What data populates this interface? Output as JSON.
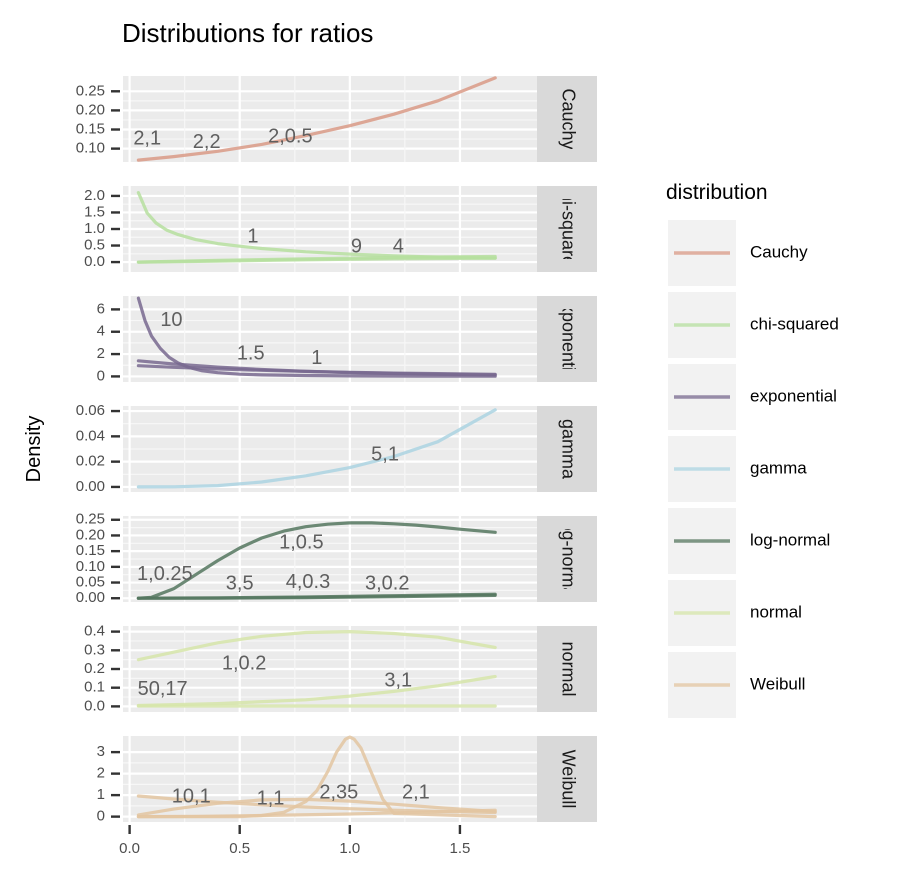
{
  "chart_data": {
    "type": "line",
    "title": "Distributions for ratios",
    "xlabel": "",
    "ylabel": "Density",
    "xlim": [
      -0.03,
      1.85
    ],
    "x_ticks": [
      {
        "value": 0.0,
        "label": "0.0"
      },
      {
        "value": 0.5,
        "label": "0.5"
      },
      {
        "value": 1.0,
        "label": "1.0"
      },
      {
        "value": 1.5,
        "label": "1.5"
      }
    ],
    "legend": {
      "title": "distribution",
      "position": "right",
      "entries": [
        {
          "label": "Cauchy",
          "color": "#d99a86"
        },
        {
          "label": "chi-squared",
          "color": "#b6df9f"
        },
        {
          "label": "exponential",
          "color": "#78698f"
        },
        {
          "label": "gamma",
          "color": "#acd4e2"
        },
        {
          "label": "log-normal",
          "color": "#55775f"
        },
        {
          "label": "normal",
          "color": "#d6e5a9"
        },
        {
          "label": "Weibull",
          "color": "#e3c5a1"
        }
      ]
    },
    "panels": [
      {
        "strip": "Cauchy",
        "color": "#d99a86",
        "ylim": [
          0.065,
          0.29
        ],
        "y_ticks": [
          {
            "value": 0.1,
            "label": "0.10"
          },
          {
            "value": 0.15,
            "label": "0.15"
          },
          {
            "value": 0.2,
            "label": "0.20"
          },
          {
            "value": 0.25,
            "label": "0.25"
          }
        ],
        "curves": [
          {
            "params": "2,0.5",
            "x": [
              0.04,
              0.2,
              0.4,
              0.6,
              0.8,
              1.0,
              1.2,
              1.4,
              1.66
            ],
            "y": [
              0.07,
              0.079,
              0.093,
              0.111,
              0.134,
              0.16,
              0.19,
              0.225,
              0.285
            ]
          }
        ],
        "labels": [
          {
            "text": "2,1",
            "x": 0.08,
            "y": 0.125
          },
          {
            "text": "2,2",
            "x": 0.35,
            "y": 0.115
          },
          {
            "text": "2,0.5",
            "x": 0.73,
            "y": 0.13
          }
        ]
      },
      {
        "strip": "chi-squared",
        "color": "#b6df9f",
        "ylim": [
          -0.3,
          2.3
        ],
        "y_ticks": [
          {
            "value": 0.0,
            "label": "0.0"
          },
          {
            "value": 0.5,
            "label": "0.5"
          },
          {
            "value": 1.0,
            "label": "1.0"
          },
          {
            "value": 1.5,
            "label": "1.5"
          },
          {
            "value": 2.0,
            "label": "2.0"
          }
        ],
        "curves": [
          {
            "params": "1",
            "x": [
              0.04,
              0.08,
              0.12,
              0.17,
              0.22,
              0.3,
              0.4,
              0.5,
              0.6,
              0.8,
              1.0,
              1.2,
              1.4,
              1.66
            ],
            "y": [
              2.1,
              1.48,
              1.18,
              0.96,
              0.83,
              0.68,
              0.56,
              0.48,
              0.41,
              0.31,
              0.24,
              0.19,
              0.15,
              0.12
            ]
          },
          {
            "params": "9",
            "x": [
              0.04,
              0.4,
              0.8,
              1.2,
              1.66
            ],
            "y": [
              0.0,
              0.03,
              0.07,
              0.1,
              0.12
            ]
          },
          {
            "params": "4",
            "x": [
              0.04,
              0.4,
              0.8,
              1.2,
              1.66
            ],
            "y": [
              0.0,
              0.05,
              0.1,
              0.14,
              0.17
            ]
          }
        ],
        "labels": [
          {
            "text": "1",
            "x": 0.56,
            "y": 0.75
          },
          {
            "text": "9",
            "x": 1.03,
            "y": 0.45
          },
          {
            "text": "4",
            "x": 1.22,
            "y": 0.45
          }
        ]
      },
      {
        "strip": "exponential",
        "color": "#78698f",
        "ylim": [
          -0.5,
          7.2
        ],
        "y_ticks": [
          {
            "value": 0,
            "label": "0"
          },
          {
            "value": 2,
            "label": "2"
          },
          {
            "value": 4,
            "label": "4"
          },
          {
            "value": 6,
            "label": "6"
          }
        ],
        "curves": [
          {
            "params": "10",
            "x": [
              0.04,
              0.07,
              0.1,
              0.14,
              0.18,
              0.22,
              0.27,
              0.33,
              0.4,
              0.5,
              0.6,
              0.8,
              1.0,
              1.3,
              1.66
            ],
            "y": [
              7.0,
              5.0,
              3.6,
              2.5,
              1.7,
              1.2,
              0.8,
              0.5,
              0.33,
              0.2,
              0.14,
              0.08,
              0.05,
              0.03,
              0.02
            ]
          },
          {
            "params": "1.5",
            "x": [
              0.04,
              0.2,
              0.4,
              0.6,
              0.8,
              1.0,
              1.2,
              1.4,
              1.66
            ],
            "y": [
              1.4,
              1.11,
              0.83,
              0.62,
              0.46,
              0.34,
              0.26,
              0.19,
              0.13
            ]
          },
          {
            "params": "1",
            "x": [
              0.04,
              0.2,
              0.4,
              0.6,
              0.8,
              1.0,
              1.2,
              1.4,
              1.66
            ],
            "y": [
              0.96,
              0.82,
              0.67,
              0.55,
              0.45,
              0.37,
              0.3,
              0.25,
              0.19
            ]
          }
        ],
        "labels": [
          {
            "text": "10",
            "x": 0.19,
            "y": 5.0
          },
          {
            "text": "1.5",
            "x": 0.55,
            "y": 2.0
          },
          {
            "text": "1",
            "x": 0.85,
            "y": 1.6
          }
        ]
      },
      {
        "strip": "gamma",
        "color": "#acd4e2",
        "ylim": [
          -0.004,
          0.064
        ],
        "y_ticks": [
          {
            "value": 0.0,
            "label": "0.00"
          },
          {
            "value": 0.02,
            "label": "0.02"
          },
          {
            "value": 0.04,
            "label": "0.04"
          },
          {
            "value": 0.06,
            "label": "0.06"
          }
        ],
        "curves": [
          {
            "params": "5,1",
            "x": [
              0.04,
              0.2,
              0.4,
              0.6,
              0.8,
              1.0,
              1.2,
              1.4,
              1.66
            ],
            "y": [
              0.0,
              0.0001,
              0.0011,
              0.0039,
              0.0088,
              0.0153,
              0.0241,
              0.0358,
              0.061
            ]
          }
        ],
        "labels": [
          {
            "text": "5,1",
            "x": 1.16,
            "y": 0.025
          }
        ]
      },
      {
        "strip": "log-normal",
        "color": "#55775f",
        "ylim": [
          -0.012,
          0.262
        ],
        "y_ticks": [
          {
            "value": 0.0,
            "label": "0.00"
          },
          {
            "value": 0.05,
            "label": "0.05"
          },
          {
            "value": 0.1,
            "label": "0.10"
          },
          {
            "value": 0.15,
            "label": "0.15"
          },
          {
            "value": 0.2,
            "label": "0.20"
          },
          {
            "value": 0.25,
            "label": "0.25"
          }
        ],
        "curves": [
          {
            "params": "1,0.5",
            "x": [
              0.04,
              0.1,
              0.2,
              0.3,
              0.4,
              0.5,
              0.6,
              0.7,
              0.8,
              0.9,
              1.0,
              1.1,
              1.2,
              1.3,
              1.4,
              1.5,
              1.66
            ],
            "y": [
              0.0,
              0.003,
              0.03,
              0.075,
              0.12,
              0.16,
              0.192,
              0.214,
              0.228,
              0.236,
              0.24,
              0.24,
              0.237,
              0.233,
              0.227,
              0.22,
              0.21
            ]
          },
          {
            "params": "4,0.3",
            "x": [
              0.04,
              0.4,
              0.8,
              1.2,
              1.66
            ],
            "y": [
              0.0,
              0.0,
              0.002,
              0.005,
              0.009
            ]
          },
          {
            "params": "3,0.2",
            "x": [
              0.04,
              0.4,
              0.8,
              1.2,
              1.66
            ],
            "y": [
              0.0,
              0.001,
              0.004,
              0.008,
              0.013
            ]
          }
        ],
        "labels": [
          {
            "text": "1,0.25",
            "x": 0.16,
            "y": 0.075
          },
          {
            "text": "3,5",
            "x": 0.5,
            "y": 0.045
          },
          {
            "text": "4,0.3",
            "x": 0.81,
            "y": 0.05
          },
          {
            "text": "3,0.2",
            "x": 1.17,
            "y": 0.045
          },
          {
            "text": "1,0.5",
            "x": 0.78,
            "y": 0.175
          }
        ]
      },
      {
        "strip": "normal",
        "color": "#d6e5a9",
        "ylim": [
          -0.03,
          0.43
        ],
        "y_ticks": [
          {
            "value": 0.0,
            "label": "0.0"
          },
          {
            "value": 0.1,
            "label": "0.1"
          },
          {
            "value": 0.2,
            "label": "0.2"
          },
          {
            "value": 0.3,
            "label": "0.3"
          },
          {
            "value": 0.4,
            "label": "0.4"
          }
        ],
        "curves": [
          {
            "params": "1,0.2",
            "x": [
              0.04,
              0.2,
              0.4,
              0.6,
              0.8,
              1.0,
              1.2,
              1.4,
              1.66
            ],
            "y": [
              0.25,
              0.29,
              0.34,
              0.375,
              0.395,
              0.4,
              0.39,
              0.37,
              0.315
            ]
          },
          {
            "params": "3,1",
            "x": [
              0.04,
              0.4,
              0.8,
              1.0,
              1.2,
              1.4,
              1.66
            ],
            "y": [
              0.005,
              0.015,
              0.035,
              0.055,
              0.08,
              0.11,
              0.16
            ]
          },
          {
            "params": "50,17",
            "x": [
              0.04,
              0.6,
              1.2,
              1.66
            ],
            "y": [
              0.002,
              0.002,
              0.002,
              0.002
            ]
          }
        ],
        "labels": [
          {
            "text": "1,0.2",
            "x": 0.52,
            "y": 0.225
          },
          {
            "text": "50,17",
            "x": 0.15,
            "y": 0.09
          },
          {
            "text": "3,1",
            "x": 1.22,
            "y": 0.135
          }
        ]
      },
      {
        "strip": "Weibull",
        "color": "#e3c5a1",
        "ylim": [
          -0.25,
          3.75
        ],
        "y_ticks": [
          {
            "value": 0,
            "label": "0"
          },
          {
            "value": 1,
            "label": "1"
          },
          {
            "value": 2,
            "label": "2"
          },
          {
            "value": 3,
            "label": "3"
          }
        ],
        "curves": [
          {
            "params": "2,35",
            "x": [
              0.04,
              0.5,
              0.6,
              0.7,
              0.8,
              0.85,
              0.9,
              0.94,
              0.98,
              1.0,
              1.02,
              1.05,
              1.1,
              1.15,
              1.2,
              1.66
            ],
            "y": [
              0.0,
              0.0,
              0.05,
              0.2,
              0.7,
              1.2,
              2.1,
              3.0,
              3.6,
              3.7,
              3.6,
              3.2,
              2.0,
              0.8,
              0.15,
              0.0
            ]
          },
          {
            "params": "10,1",
            "x": [
              0.04,
              0.2,
              0.4,
              0.6,
              0.8,
              1.0,
              1.2,
              1.4,
              1.66
            ],
            "y": [
              0.96,
              0.82,
              0.67,
              0.55,
              0.45,
              0.37,
              0.3,
              0.25,
              0.19
            ]
          },
          {
            "params": "1,1",
            "x": [
              0.04,
              0.2,
              0.4,
              0.6,
              0.8,
              1.0,
              1.2,
              1.4,
              1.66
            ],
            "y": [
              0.08,
              0.35,
              0.62,
              0.78,
              0.8,
              0.72,
              0.58,
              0.42,
              0.24
            ]
          },
          {
            "params": "2,1",
            "x": [
              0.04,
              0.3,
              0.6,
              1.0,
              1.3,
              1.66
            ],
            "y": [
              0.0,
              0.01,
              0.05,
              0.12,
              0.2,
              0.3
            ]
          }
        ],
        "labels": [
          {
            "text": "10,1",
            "x": 0.28,
            "y": 0.9
          },
          {
            "text": "1,1",
            "x": 0.64,
            "y": 0.8
          },
          {
            "text": "2,35",
            "x": 0.95,
            "y": 1.1
          },
          {
            "text": "2,1",
            "x": 1.3,
            "y": 1.1
          }
        ]
      }
    ]
  }
}
